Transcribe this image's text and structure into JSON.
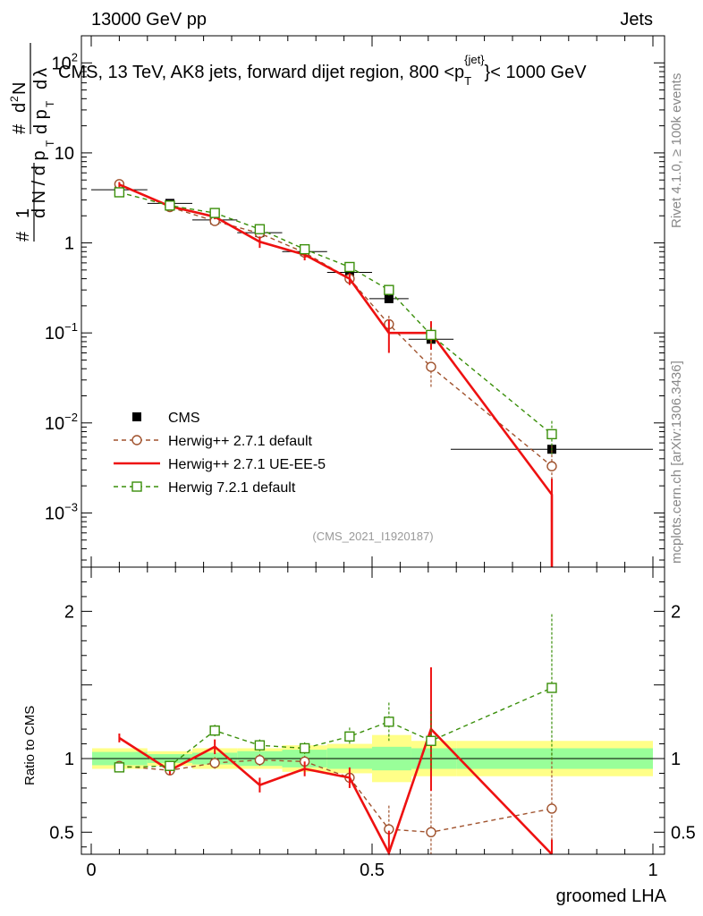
{
  "header": {
    "left": "13000 GeV pp",
    "right": "Jets"
  },
  "side_text": {
    "rivet": "Rivet 4.1.0, ≥ 100k events",
    "mcplots": "mcplots.cern.ch [arXiv:1306.3436]"
  },
  "analysis_id": "(CMS_2021_I1920187)",
  "colors": {
    "cms": "#000000",
    "herwig271": "#a0522d",
    "ueee5": "#ee1111",
    "herwig721": "#3a8f0a",
    "band_inner": "#99ff99",
    "band_outer": "#ffff88"
  },
  "chart_data": [
    {
      "type": "line",
      "panel": "main",
      "title": "CMS, 13 TeV, AK8 jets, forward dijet region, 800 <p_T^{jet}< 1000 GeV",
      "title_parts": {
        "prefix": "CMS, 13 TeV, AK8 jets, forward dijet region, 800 <p",
        "sup": "{jet}",
        "sub": "T",
        "suffix": "}< 1000 GeV"
      },
      "ylabel": "1/N dN/dp_T dλ",
      "yscale": "log",
      "ylim": [
        0.00025,
        200
      ],
      "xlim": [
        0,
        1
      ],
      "y_ticks": [
        {
          "value": 100,
          "base": "10",
          "exp": "2"
        },
        {
          "value": 10,
          "base": "10",
          "exp": ""
        },
        {
          "value": 1,
          "base": "1",
          "exp": ""
        },
        {
          "value": 0.1,
          "base": "10",
          "exp": "−1"
        },
        {
          "value": 0.01,
          "base": "10",
          "exp": "−2"
        },
        {
          "value": 0.001,
          "base": "10",
          "exp": "−3"
        }
      ],
      "legend": {
        "position": "lower-left",
        "entries": [
          {
            "key": "cms",
            "label": "CMS"
          },
          {
            "key": "herwig271",
            "label": "Herwig++ 2.7.1 default"
          },
          {
            "key": "ueee5",
            "label": "Herwig++ 2.7.1 UE-EE-5"
          },
          {
            "key": "herwig721",
            "label": "Herwig 7.2.1 default"
          }
        ]
      },
      "series": [
        {
          "key": "cms",
          "name": "CMS",
          "style": "marker-square-filled",
          "x": [
            0.05,
            0.14,
            0.22,
            0.3,
            0.38,
            0.46,
            0.53,
            0.605,
            0.82
          ],
          "xerr": [
            0.05,
            0.04,
            0.04,
            0.04,
            0.04,
            0.04,
            0.035,
            0.04,
            0.18
          ],
          "y": [
            3.9,
            2.75,
            1.8,
            1.3,
            0.8,
            0.47,
            0.24,
            0.085,
            0.0051
          ]
        },
        {
          "key": "herwig271",
          "name": "Herwig++ 2.7.1 default",
          "style": "dashed-open-circle",
          "x": [
            0.05,
            0.14,
            0.22,
            0.3,
            0.38,
            0.46,
            0.53,
            0.605,
            0.82
          ],
          "y": [
            4.5,
            2.5,
            1.75,
            1.28,
            0.78,
            0.4,
            0.125,
            0.042,
            0.0033
          ],
          "err": [
            0.25,
            0.12,
            0.1,
            0.08,
            0.06,
            0.04,
            0.03,
            0.018,
            0.0023
          ]
        },
        {
          "key": "ueee5",
          "name": "Herwig++ 2.7.1 UE-EE-5",
          "style": "solid-step",
          "x": [
            0.05,
            0.14,
            0.22,
            0.3,
            0.38,
            0.46,
            0.53,
            0.605,
            0.82
          ],
          "y": [
            4.45,
            2.55,
            1.95,
            1.03,
            0.74,
            0.4,
            0.1,
            0.1,
            0.0016
          ],
          "err": [
            0.3,
            0.12,
            0.12,
            0.15,
            0.1,
            0.06,
            0.04,
            0.035,
            0.0008
          ]
        },
        {
          "key": "herwig721",
          "name": "Herwig 7.2.1 default",
          "style": "dashed-open-square",
          "x": [
            0.05,
            0.14,
            0.22,
            0.3,
            0.38,
            0.46,
            0.53,
            0.605,
            0.82
          ],
          "y": [
            3.65,
            2.6,
            2.15,
            1.42,
            0.85,
            0.54,
            0.3,
            0.095,
            0.0075
          ],
          "err": [
            0.2,
            0.12,
            0.1,
            0.08,
            0.05,
            0.05,
            0.04,
            0.02,
            0.003
          ]
        }
      ]
    },
    {
      "type": "line",
      "panel": "ratio",
      "ylabel": "Ratio to CMS",
      "xlabel": "groomed LHA",
      "ylim": [
        0.35,
        2.3
      ],
      "xlim": [
        0,
        1
      ],
      "x_ticks": [
        {
          "value": 0,
          "label": "0"
        },
        {
          "value": 0.5,
          "label": "0.5"
        },
        {
          "value": 1,
          "label": "1"
        }
      ],
      "y_ticks": [
        {
          "value": 0.5,
          "label": "0.5"
        },
        {
          "value": 1,
          "label": "1"
        },
        {
          "value": 2,
          "label": "2"
        }
      ],
      "bands": [
        {
          "x0": 0.0,
          "x1": 0.1,
          "inner": 0.045,
          "outer": 0.07
        },
        {
          "x0": 0.1,
          "x1": 0.18,
          "inner": 0.03,
          "outer": 0.05
        },
        {
          "x0": 0.18,
          "x1": 0.26,
          "inner": 0.04,
          "outer": 0.07
        },
        {
          "x0": 0.26,
          "x1": 0.34,
          "inner": 0.05,
          "outer": 0.07
        },
        {
          "x0": 0.34,
          "x1": 0.42,
          "inner": 0.06,
          "outer": 0.09
        },
        {
          "x0": 0.42,
          "x1": 0.5,
          "inner": 0.07,
          "outer": 0.1
        },
        {
          "x0": 0.5,
          "x1": 0.57,
          "inner": 0.08,
          "outer": 0.16
        },
        {
          "x0": 0.57,
          "x1": 0.65,
          "inner": 0.07,
          "outer": 0.12
        },
        {
          "x0": 0.65,
          "x1": 1.0,
          "inner": 0.07,
          "outer": 0.12
        }
      ],
      "series": [
        {
          "key": "herwig271",
          "name": "Herwig++ 2.7.1 default",
          "x": [
            0.05,
            0.14,
            0.22,
            0.3,
            0.38,
            0.46,
            0.53,
            0.605,
            0.82
          ],
          "y": [
            0.95,
            0.92,
            0.97,
            0.99,
            0.98,
            0.87,
            0.52,
            0.5,
            0.66
          ],
          "err": [
            0.02,
            0.03,
            0.04,
            0.04,
            0.04,
            0.05,
            0.16,
            0.26,
            0.38
          ]
        },
        {
          "key": "ueee5",
          "name": "Herwig++ 2.7.1 UE-EE-5",
          "x": [
            0.05,
            0.14,
            0.22,
            0.3,
            0.38,
            0.46,
            0.53,
            0.605,
            0.82
          ],
          "y": [
            1.14,
            0.92,
            1.08,
            0.82,
            0.93,
            0.87,
            0.36,
            1.2,
            0.3
          ],
          "err": [
            0.03,
            0.03,
            0.05,
            0.05,
            0.05,
            0.07,
            0.15,
            0.42,
            0.15
          ]
        },
        {
          "key": "herwig721",
          "name": "Herwig 7.2.1 default",
          "x": [
            0.05,
            0.14,
            0.22,
            0.3,
            0.38,
            0.46,
            0.53,
            0.605,
            0.82
          ],
          "y": [
            0.94,
            0.95,
            1.19,
            1.09,
            1.07,
            1.15,
            1.25,
            1.12,
            1.48
          ],
          "err": [
            0.02,
            0.03,
            0.04,
            0.04,
            0.04,
            0.06,
            0.13,
            0.2,
            0.5
          ]
        }
      ]
    }
  ]
}
